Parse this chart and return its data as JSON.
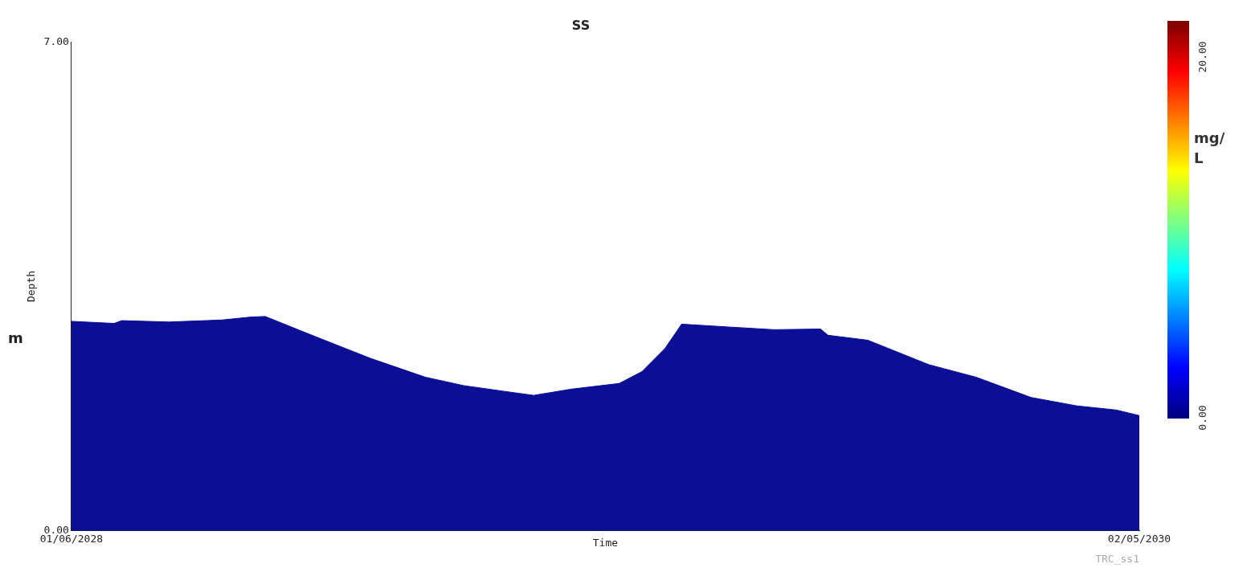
{
  "chart_data": {
    "type": "area",
    "title": "SS",
    "xlabel": "Time",
    "ylabel": "Depth",
    "clabel": "mg/L",
    "x": [
      "2028-06-01",
      "2028-06-29",
      "2028-07-04",
      "2028-08-04",
      "2028-09-08",
      "2028-09-26",
      "2028-10-06",
      "2028-11-08",
      "2028-12-14",
      "2029-01-19",
      "2029-02-13",
      "2029-03-11",
      "2029-03-31",
      "2029-04-25",
      "2029-05-26",
      "2029-06-10",
      "2029-06-25",
      "2029-07-06",
      "2029-08-05",
      "2029-09-05",
      "2029-10-05",
      "2029-10-10",
      "2029-11-05",
      "2029-12-15",
      "2030-01-15",
      "2030-02-20",
      "2030-03-22",
      "2030-04-17",
      "2030-05-02"
    ],
    "series": [
      {
        "color": "#0a0f96",
        "values": [
          3.0,
          2.97,
          3.01,
          2.99,
          3.02,
          3.06,
          3.07,
          2.78,
          2.47,
          2.2,
          2.08,
          2.0,
          1.94,
          2.03,
          2.11,
          2.28,
          2.61,
          2.96,
          2.92,
          2.88,
          2.89,
          2.8,
          2.73,
          2.38,
          2.2,
          1.91,
          1.79,
          1.73,
          1.65
        ]
      }
    ],
    "xlim": [
      "2028-06-01",
      "2030-05-02"
    ],
    "xticks": [
      {
        "value": "2028-06-01",
        "label": "01/06/2028"
      },
      {
        "value": "2030-05-02",
        "label": "02/05/2030"
      }
    ],
    "ylim": [
      0,
      7
    ],
    "yticks": [
      {
        "value": 0,
        "label": "0.00"
      },
      {
        "value": 7,
        "label": "7.00"
      }
    ],
    "clim": [
      0,
      22
    ],
    "cticks": [
      {
        "value": 0,
        "label": "0.00"
      },
      {
        "value": 20,
        "label": "20.00"
      }
    ],
    "grid": false,
    "legend": false,
    "annotations": [
      "m",
      "TRC_ss1"
    ]
  }
}
